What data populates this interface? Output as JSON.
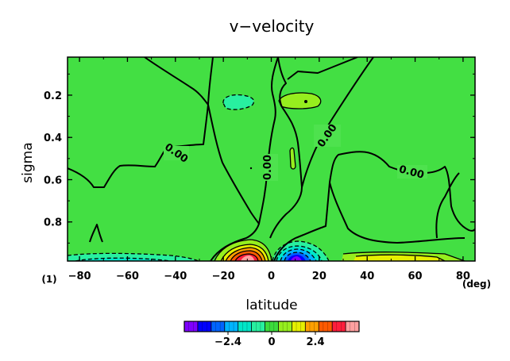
{
  "chart_data": {
    "type": "heatmap",
    "title": "v−velocity",
    "xlabel": "latitude",
    "ylabel": "sigma",
    "x_unit": "(deg)",
    "corner_label": "(1)",
    "xlim": [
      -85,
      85
    ],
    "ylim": [
      0.985,
      0.02
    ],
    "x_ticks": [
      -80,
      -60,
      -40,
      -20,
      0,
      20,
      40,
      60,
      80
    ],
    "x_tick_labels": [
      "−80",
      "−60",
      "−40",
      "−20",
      "0",
      "20",
      "40",
      "60",
      "80"
    ],
    "y_ticks": [
      0.2,
      0.4,
      0.6,
      0.8
    ],
    "y_tick_labels": [
      "0.2",
      "0.4",
      "0.6",
      "0.8"
    ],
    "contour_labels": [
      "0.00",
      "0.00",
      "0.00",
      "0.00"
    ],
    "colorbar": {
      "range": [
        -4.8,
        4.8
      ],
      "ticks": [
        -2.4,
        0,
        2.4
      ],
      "tick_labels": [
        "−2.4",
        "0",
        "2.4"
      ],
      "colors": [
        "#7f00ff",
        "#0000ff",
        "#0064ff",
        "#00b4ff",
        "#00e6c8",
        "#28f0a0",
        "#3cdc3c",
        "#96ee1e",
        "#e6f000",
        "#ffa000",
        "#ff5a00",
        "#ff1e3c",
        "#ffa0a0"
      ]
    },
    "regions": [
      {
        "kind": "background",
        "value": 0.1
      },
      {
        "kind": "minor-negative-patch",
        "lat": -20,
        "sigma": 0.25,
        "value": -0.6
      },
      {
        "kind": "minor-positive-patch",
        "lat": 13,
        "sigma": 0.24,
        "value": 0.6
      },
      {
        "kind": "minor-positive-patch",
        "lat": 6,
        "sigma": 0.52,
        "value": 0.6
      },
      {
        "kind": "surface-positive-max",
        "lat": -10,
        "sigma": 0.97,
        "value": 4.5
      },
      {
        "kind": "surface-negative-min",
        "lat": 10,
        "sigma": 0.97,
        "value": -4.5
      },
      {
        "kind": "surface-negative-band",
        "lat_range": [
          -85,
          -35
        ],
        "sigma": 0.98,
        "value": -0.6
      },
      {
        "kind": "surface-positive-band",
        "lat_range": [
          35,
          80
        ],
        "sigma": 0.98,
        "value": 1.2
      }
    ]
  }
}
